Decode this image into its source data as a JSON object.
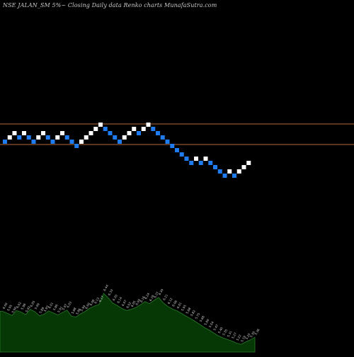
{
  "header": {
    "symbol": "NSE JALAN_SM",
    "box_pct": "5%",
    "chart_desc": "Closing Daily data Renko  charts",
    "site": "MunafaSutra.com"
  },
  "colors": {
    "background": "#000000",
    "up_brick": "#ffffff",
    "down_brick": "#1f7bf0",
    "ref_line": "#b86a3a",
    "volume_fill": "#063806",
    "volume_stroke": "#2a7a2a",
    "volume_label": "#d8d8d8"
  },
  "chart_data": {
    "type": "renko",
    "box_size_pct": 5,
    "grid": false,
    "reference_lines": [
      {
        "level": 6.38
      },
      {
        "level": 5.47
      }
    ],
    "bricks": [
      {
        "dir": "down",
        "level": 5.5
      },
      {
        "dir": "up",
        "level": 5.6
      },
      {
        "dir": "up",
        "level": 5.7
      },
      {
        "dir": "down",
        "level": 5.6
      },
      {
        "dir": "up",
        "level": 5.7
      },
      {
        "dir": "down",
        "level": 5.6
      },
      {
        "dir": "down",
        "level": 5.5
      },
      {
        "dir": "up",
        "level": 5.6
      },
      {
        "dir": "up",
        "level": 5.7
      },
      {
        "dir": "down",
        "level": 5.6
      },
      {
        "dir": "down",
        "level": 5.5
      },
      {
        "dir": "up",
        "level": 5.6
      },
      {
        "dir": "up",
        "level": 5.7
      },
      {
        "dir": "down",
        "level": 5.6
      },
      {
        "dir": "down",
        "level": 5.5
      },
      {
        "dir": "down",
        "level": 5.4
      },
      {
        "dir": "up",
        "level": 5.5
      },
      {
        "dir": "up",
        "level": 5.6
      },
      {
        "dir": "up",
        "level": 5.7
      },
      {
        "dir": "up",
        "level": 5.8
      },
      {
        "dir": "up",
        "level": 5.9
      },
      {
        "dir": "down",
        "level": 5.8
      },
      {
        "dir": "down",
        "level": 5.7
      },
      {
        "dir": "down",
        "level": 5.6
      },
      {
        "dir": "down",
        "level": 5.5
      },
      {
        "dir": "up",
        "level": 5.6
      },
      {
        "dir": "up",
        "level": 5.7
      },
      {
        "dir": "up",
        "level": 5.8
      },
      {
        "dir": "down",
        "level": 5.7
      },
      {
        "dir": "up",
        "level": 5.8
      },
      {
        "dir": "up",
        "level": 5.9
      },
      {
        "dir": "down",
        "level": 5.8
      },
      {
        "dir": "down",
        "level": 5.7
      },
      {
        "dir": "down",
        "level": 5.6
      },
      {
        "dir": "down",
        "level": 5.5
      },
      {
        "dir": "down",
        "level": 5.4
      },
      {
        "dir": "down",
        "level": 5.3
      },
      {
        "dir": "down",
        "level": 5.2
      },
      {
        "dir": "down",
        "level": 5.1
      },
      {
        "dir": "down",
        "level": 5.0
      },
      {
        "dir": "up",
        "level": 5.1
      },
      {
        "dir": "down",
        "level": 5.0
      },
      {
        "dir": "up",
        "level": 5.1
      },
      {
        "dir": "down",
        "level": 5.0
      },
      {
        "dir": "down",
        "level": 4.9
      },
      {
        "dir": "down",
        "level": 4.8
      },
      {
        "dir": "down",
        "level": 4.7
      },
      {
        "dir": "up",
        "level": 4.8
      },
      {
        "dir": "down",
        "level": 4.7
      },
      {
        "dir": "up",
        "level": 4.8
      },
      {
        "dir": "up",
        "level": 4.9
      },
      {
        "dir": "up",
        "level": 5.0
      }
    ],
    "volume_labels": [
      "6.00",
      "5.95",
      "5.90",
      "6.02",
      "5.98",
      "5.92",
      "6.05",
      "5.99",
      "5.89",
      "5.93",
      "6.01",
      "5.96",
      "5.91",
      "5.97",
      "6.03",
      "5.88",
      "5.86",
      "5.94",
      "6.00",
      "6.08",
      "6.13",
      "6.17",
      "6.44",
      "6.33",
      "6.20",
      "6.14",
      "6.07",
      "6.02",
      "6.05",
      "6.09",
      "6.16",
      "6.24",
      "6.19",
      "6.27",
      "6.34",
      "6.21",
      "6.12",
      "6.06",
      "6.01",
      "5.95",
      "5.88",
      "5.82",
      "5.75",
      "5.68",
      "5.60",
      "5.54",
      "5.47",
      "5.40",
      "5.35",
      "5.31",
      "5.27",
      "5.22",
      "5.19",
      "5.25",
      "5.30",
      "5.36"
    ]
  }
}
